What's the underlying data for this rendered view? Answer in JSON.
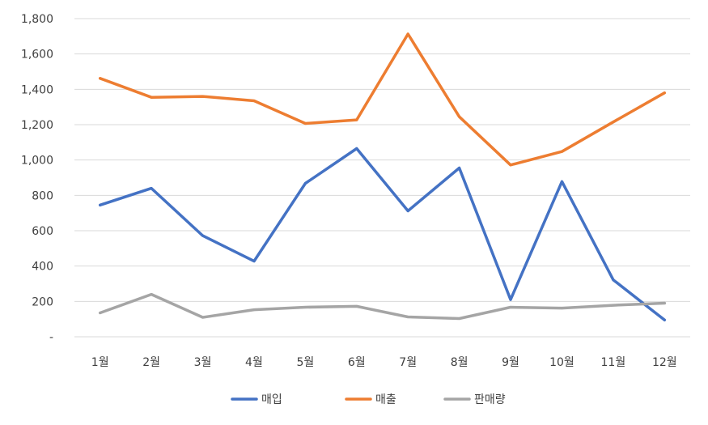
{
  "chart_data": {
    "type": "line",
    "categories": [
      "1월",
      "2월",
      "3월",
      "4월",
      "5월",
      "6월",
      "7월",
      "8월",
      "9월",
      "10월",
      "11월",
      "12월"
    ],
    "y_ticks": [
      "-",
      "200",
      "400",
      "600",
      "800",
      "1,000",
      "1,200",
      "1,400",
      "1,600",
      "1,800"
    ],
    "ylim": [
      0,
      1800
    ],
    "grid": true,
    "legend_position": "bottom",
    "series": [
      {
        "name": "매입",
        "color": "#4472C4",
        "values": [
          745,
          840,
          572,
          428,
          868,
          1065,
          712,
          955,
          210,
          878,
          322,
          95
        ]
      },
      {
        "name": "매출",
        "color": "#ED7D31",
        "values": [
          1462,
          1355,
          1360,
          1335,
          1207,
          1227,
          1713,
          1245,
          972,
          1048,
          1215,
          1380
        ]
      },
      {
        "name": "판매량",
        "color": "#A5A5A5",
        "values": [
          135,
          240,
          110,
          153,
          167,
          172,
          112,
          103,
          167,
          162,
          178,
          190
        ]
      }
    ]
  }
}
